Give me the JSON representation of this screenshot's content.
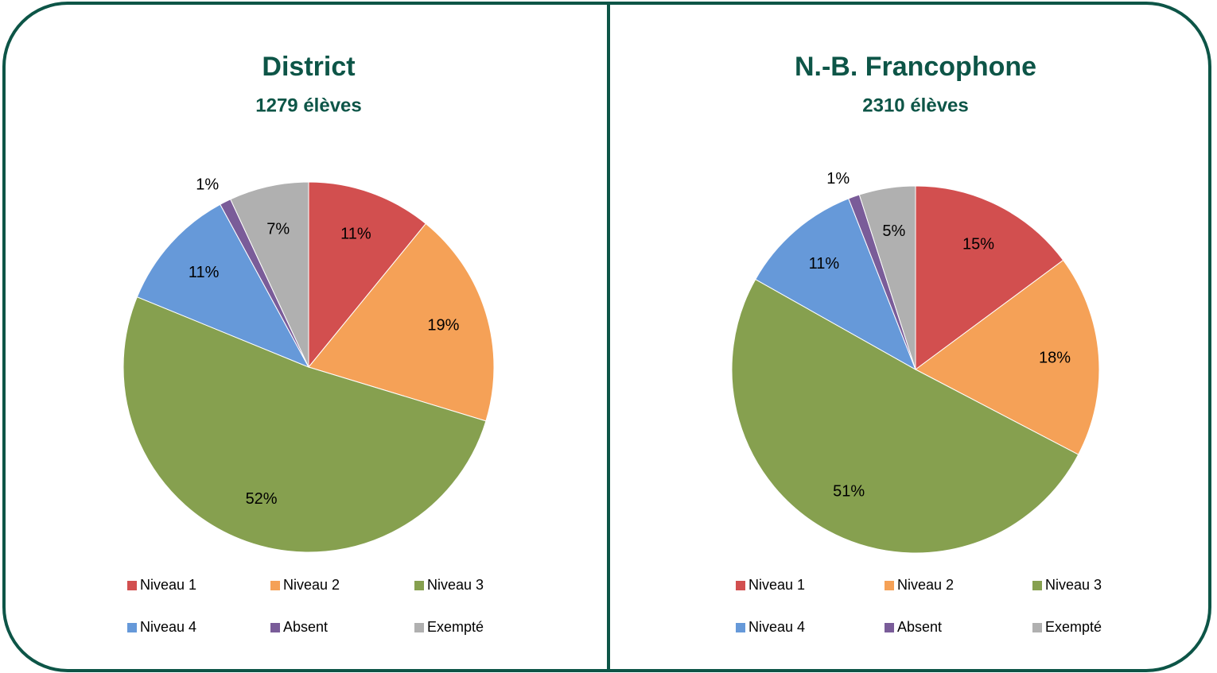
{
  "chart_data": [
    {
      "type": "pie",
      "title": "District",
      "subtitle": "1279 élèves",
      "categories": [
        "Niveau 1",
        "Niveau 2",
        "Niveau 3",
        "Niveau 4",
        "Absent",
        "Exempté"
      ],
      "values": [
        11,
        19,
        52,
        11,
        1,
        7
      ],
      "value_labels": [
        "11%",
        "19%",
        "52%",
        "11%",
        "1%",
        "7%"
      ],
      "colors": [
        "#d24f4f",
        "#f5a157",
        "#86a04f",
        "#6699d9",
        "#7a5c99",
        "#b0b0b0"
      ]
    },
    {
      "type": "pie",
      "title": "N.-B. Francophone",
      "subtitle": "2310 élèves",
      "categories": [
        "Niveau 1",
        "Niveau 2",
        "Niveau 3",
        "Niveau 4",
        "Absent",
        "Exempté"
      ],
      "values": [
        15,
        18,
        51,
        11,
        1,
        5
      ],
      "value_labels": [
        "15%",
        "18%",
        "51%",
        "11%",
        "1%",
        "5%"
      ],
      "colors": [
        "#d24f4f",
        "#f5a157",
        "#86a04f",
        "#6699d9",
        "#7a5c99",
        "#b0b0b0"
      ]
    }
  ]
}
